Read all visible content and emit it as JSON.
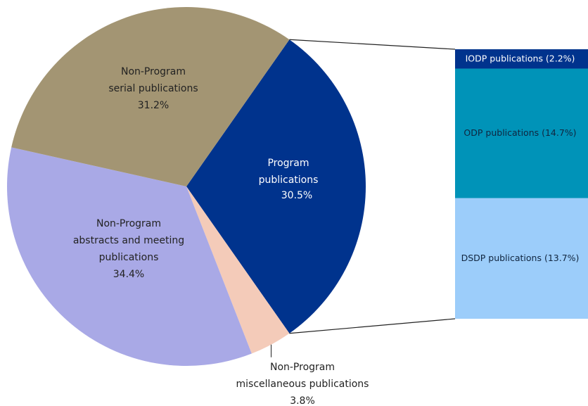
{
  "chart_data": {
    "type": "pie-of-bar",
    "categories": [
      [
        "Program",
        "publications"
      ],
      [
        "Non-Program",
        "miscellaneous publications"
      ],
      [
        "Non-Program",
        "abstracts and meeting",
        "publications"
      ],
      [
        "Non-Program",
        "serial publications"
      ]
    ],
    "values": [
      30.5,
      3.8,
      34.4,
      31.2
    ],
    "value_labels": [
      "30.5%",
      "3.8%",
      "34.4%",
      "31.2%"
    ],
    "colors": [
      "#00338d",
      "#f4cbb9",
      "#a9a9e6",
      "#a39573"
    ],
    "bar": {
      "labels": [
        "IODP publications (2.2%)",
        "ODP publications (14.7%)",
        "DSDP publications (13.7%)"
      ],
      "values": [
        2.2,
        14.7,
        13.7
      ],
      "colors": [
        "#00338d",
        "#0093b8",
        "#9ccdfa"
      ],
      "text_colors": [
        "#ffffff",
        "#10253f",
        "#10253f"
      ]
    }
  }
}
